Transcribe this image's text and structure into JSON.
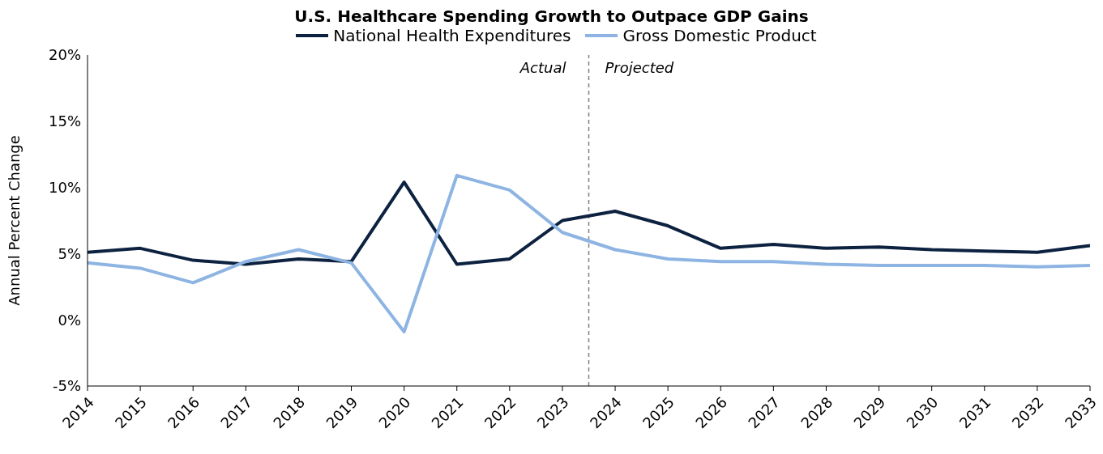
{
  "chart_data": {
    "type": "line",
    "title": "U.S. Healthcare Spending Growth to Outpace GDP Gains",
    "ylabel": "Annual Percent Change",
    "x": [
      2014,
      2015,
      2016,
      2017,
      2018,
      2019,
      2020,
      2021,
      2022,
      2023,
      2024,
      2025,
      2026,
      2027,
      2028,
      2029,
      2030,
      2031,
      2032,
      2033
    ],
    "xlim": [
      2014,
      2033
    ],
    "xticks": [
      2014,
      2015,
      2016,
      2017,
      2018,
      2019,
      2020,
      2021,
      2022,
      2023,
      2024,
      2025,
      2026,
      2027,
      2028,
      2029,
      2030,
      2031,
      2032,
      2033
    ],
    "ylim": [
      -5,
      20
    ],
    "yticks": [
      {
        "value": -5,
        "label": "-5%"
      },
      {
        "value": 0,
        "label": "0%"
      },
      {
        "value": 5,
        "label": "5%"
      },
      {
        "value": 10,
        "label": "10%"
      },
      {
        "value": 15,
        "label": "15%"
      },
      {
        "value": 20,
        "label": "20%"
      }
    ],
    "series": [
      {
        "name": "National Health Expenditures",
        "color": "#0d2240",
        "values": [
          5.1,
          5.4,
          4.5,
          4.2,
          4.6,
          4.4,
          10.4,
          4.2,
          4.6,
          7.5,
          8.2,
          7.1,
          5.4,
          5.7,
          5.4,
          5.5,
          5.3,
          5.2,
          5.1,
          5.6
        ]
      },
      {
        "name": "Gross Domestic Product",
        "color": "#8db4e2",
        "values": [
          4.3,
          3.9,
          2.8,
          4.4,
          5.3,
          4.3,
          -0.9,
          10.9,
          9.8,
          6.6,
          5.3,
          4.6,
          4.4,
          4.4,
          4.2,
          4.1,
          4.1,
          4.1,
          4.0,
          4.1
        ]
      }
    ],
    "ref_lines": [
      {
        "axis": "x",
        "value": 2023.5,
        "color": "#808080",
        "line_style": "dashed"
      }
    ],
    "annotations": [
      "Actual",
      "Projected"
    ],
    "legend": "top",
    "marker": "none",
    "line_style": "solid"
  }
}
